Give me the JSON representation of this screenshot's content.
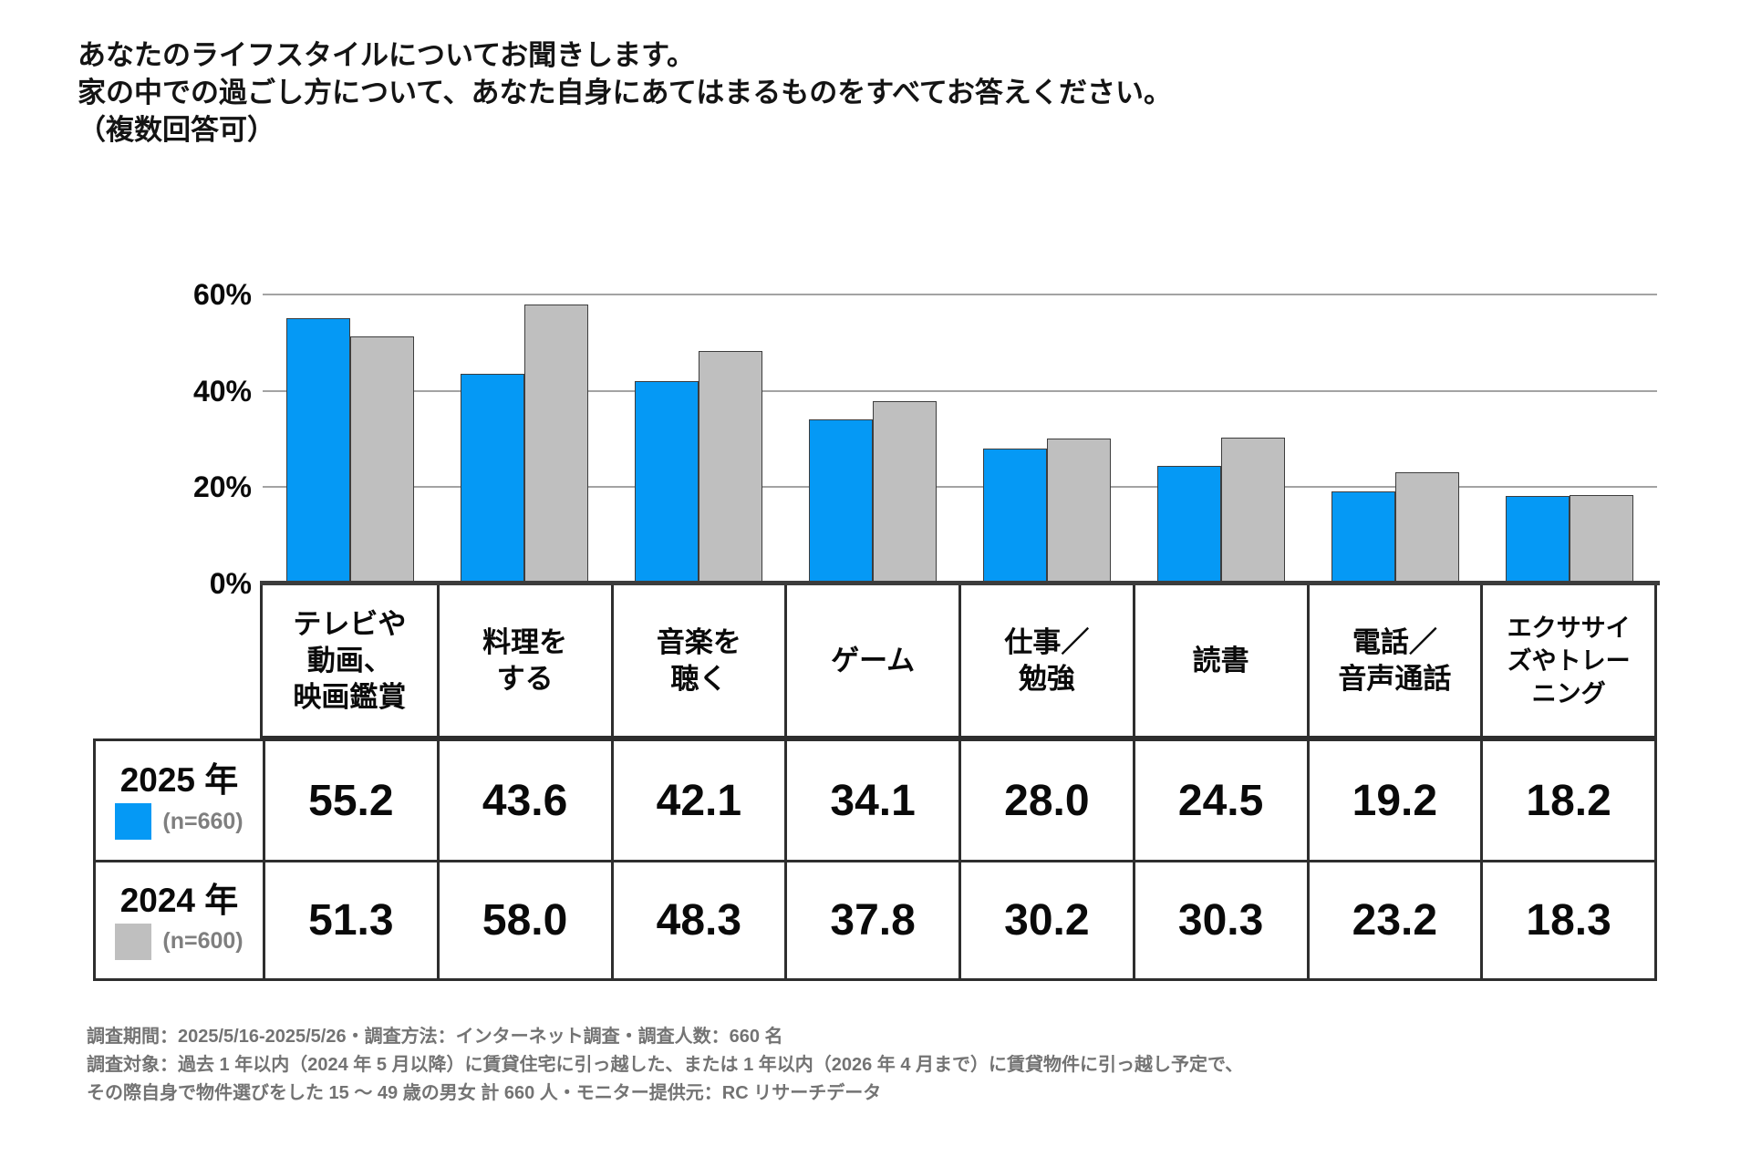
{
  "title": {
    "lines": [
      "あなたのライフスタイルについてお聞きします。",
      "家の中での過ごし方について、あなた自身にあてはまるものをすべてお答えください。",
      "（複数回答可）"
    ]
  },
  "chart_data": {
    "type": "bar",
    "title": "家の中での過ごし方（複数回答可）",
    "categories": [
      "テレビや動画、映画鑑賞",
      "料理をする",
      "音楽を聴く",
      "ゲーム",
      "仕事／勉強",
      "読書",
      "電話／音声通話",
      "エクササイズやトレーニング"
    ],
    "categories_display": [
      [
        "テレビや",
        "動画、",
        "映画鑑賞"
      ],
      [
        "料理を",
        "する"
      ],
      [
        "音楽を",
        "聴く"
      ],
      [
        "ゲーム"
      ],
      [
        "仕事／",
        "勉強"
      ],
      [
        "読書"
      ],
      [
        "電話／",
        "音声通話"
      ],
      [
        "エクササイ",
        "ズやトレー",
        "ニング"
      ]
    ],
    "series": [
      {
        "name": "2025 年",
        "n_label": "(n=660)",
        "color": "#0599F5",
        "values": [
          55.2,
          43.6,
          42.1,
          34.1,
          28.0,
          24.5,
          19.2,
          18.2
        ],
        "display": [
          "55.2",
          "43.6",
          "42.1",
          "34.1",
          "28.0",
          "24.5",
          "19.2",
          "18.2"
        ]
      },
      {
        "name": "2024 年",
        "n_label": "(n=600)",
        "color": "#BFBFBF",
        "values": [
          51.3,
          58.0,
          48.3,
          37.8,
          30.2,
          30.3,
          23.2,
          18.3
        ],
        "display": [
          "51.3",
          "58.0",
          "48.3",
          "37.8",
          "30.2",
          "30.3",
          "23.2",
          "18.3"
        ]
      }
    ],
    "yticks": [
      {
        "v": 60,
        "label": "60%"
      },
      {
        "v": 40,
        "label": "40%"
      },
      {
        "v": 20,
        "label": "20%"
      },
      {
        "v": 0,
        "label": "0%"
      }
    ],
    "ylim": [
      0,
      75
    ],
    "grid": true,
    "legend_position": "table-left-column",
    "colors": {
      "bar_border": "#3d3d3d",
      "gridline": "#a3a3a3",
      "axis": "#3c3c3c"
    }
  },
  "footer": {
    "lines": [
      "調査期間：2025/5/16-2025/5/26・調査方法：インターネット調査・調査人数：660 名",
      "調査対象：過去 1 年以内（2024 年 5 月以降）に賃貸住宅に引っ越した、または 1 年以内（2026 年 4 月まで）に賃貸物件に引っ越し予定で、",
      "その際自身で物件選びをした 15 ～ 49 歳の男女 計 660 人・モニター提供元：RC リサーチデータ"
    ]
  }
}
